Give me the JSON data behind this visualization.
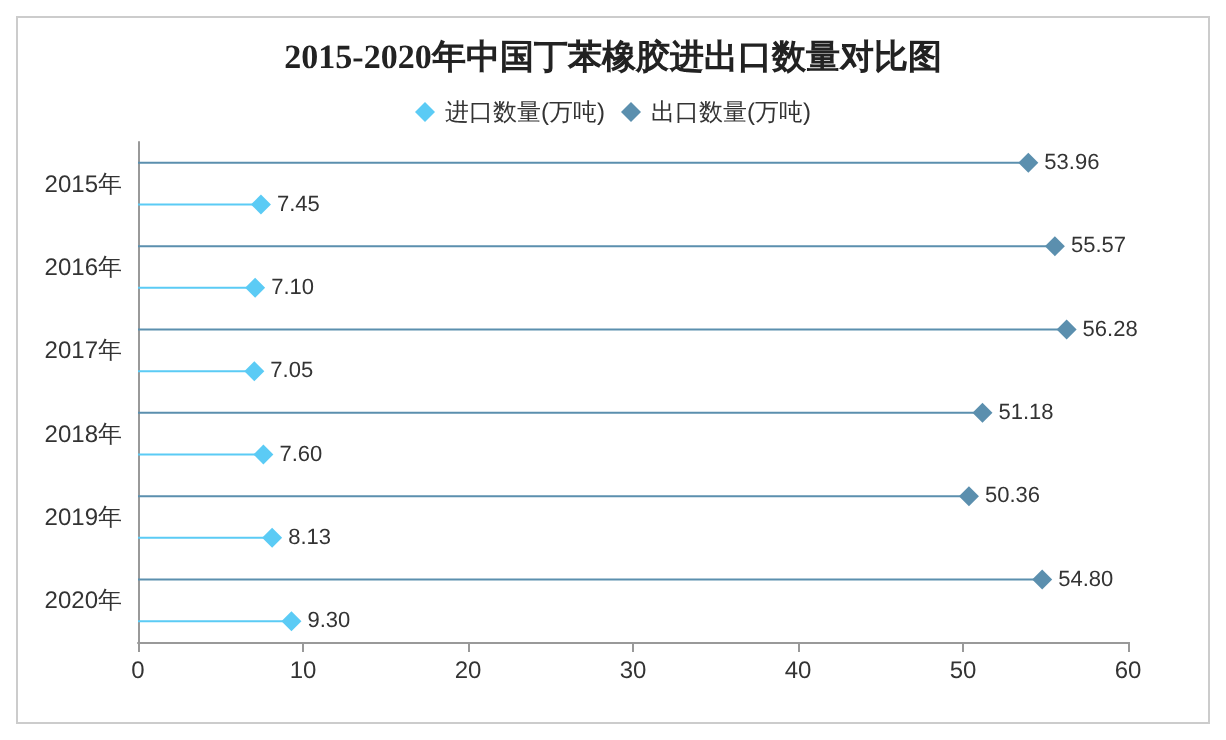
{
  "chart_data": {
    "type": "lollipop",
    "orientation": "horizontal",
    "title": "2015-2020年中国丁苯橡胶进出口数量对比图",
    "categories": [
      "2015年",
      "2016年",
      "2017年",
      "2018年",
      "2019年",
      "2020年"
    ],
    "series": [
      {
        "name": "进口数量(万吨)",
        "color": "#5bcbf5",
        "values": [
          7.45,
          7.1,
          7.05,
          7.6,
          8.13,
          9.3
        ],
        "value_labels": [
          "7.45",
          "7.10",
          "7.05",
          "7.60",
          "8.13",
          "9.30"
        ]
      },
      {
        "name": "出口数量(万吨)",
        "color": "#5b8fae",
        "values": [
          53.96,
          55.57,
          56.28,
          51.18,
          50.36,
          54.8
        ],
        "value_labels": [
          "53.96",
          "55.57",
          "56.28",
          "51.18",
          "50.36",
          "54.80"
        ]
      }
    ],
    "xlim": [
      0,
      60
    ],
    "xticks": [
      0,
      10,
      20,
      30,
      40,
      50,
      60
    ],
    "grid": false,
    "legend": "top",
    "marker": "diamond"
  }
}
